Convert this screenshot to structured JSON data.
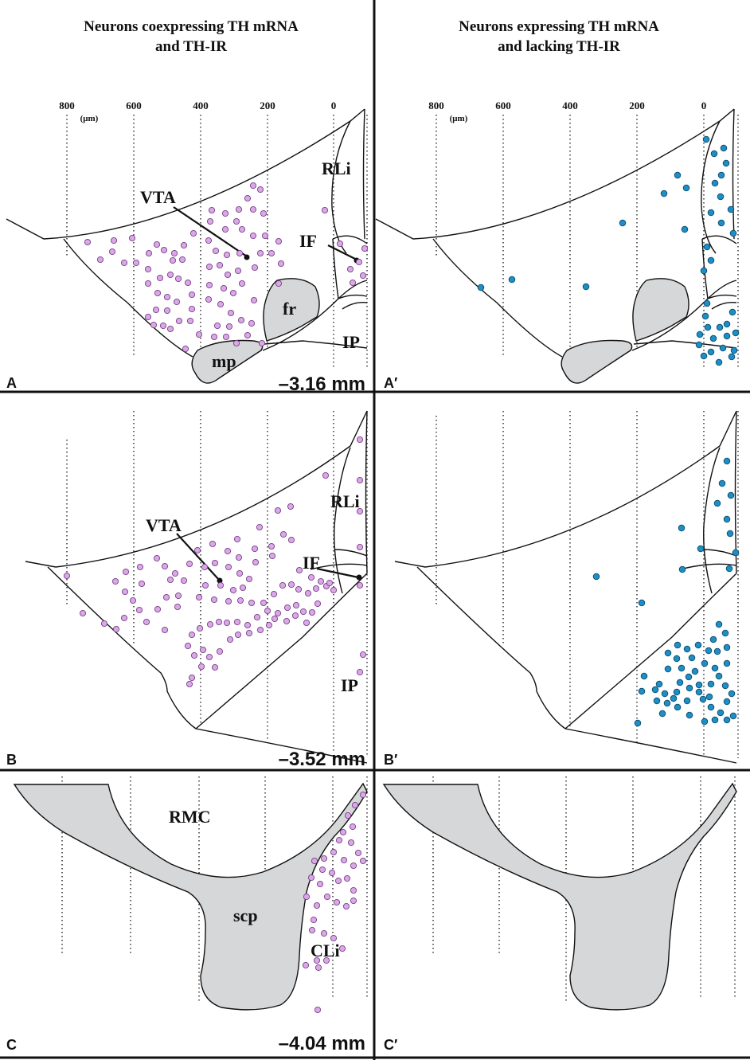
{
  "columns": {
    "left_title": [
      "Neurons coexpressing TH mRNA",
      "and TH-IR"
    ],
    "right_title": [
      "Neurons expressing TH mRNA",
      "and lacking TH-IR"
    ]
  },
  "axis": {
    "ticks": [
      "800",
      "600",
      "400",
      "200",
      "0"
    ],
    "unit": "(μm)"
  },
  "panels": {
    "A": {
      "label": "A",
      "level": "–3.16 mm",
      "regions": [
        "VTA",
        "RLi",
        "IF",
        "fr",
        "mp",
        "IP"
      ]
    },
    "A2": {
      "label": "A′"
    },
    "B": {
      "label": "B",
      "level": "–3.52 mm",
      "regions": [
        "VTA",
        "RLi",
        "IF",
        "IP"
      ]
    },
    "B2": {
      "label": "B′"
    },
    "C": {
      "label": "C",
      "level": "–4.04 mm",
      "regions": [
        "RMC",
        "scp",
        "CLi"
      ]
    },
    "C2": {
      "label": "C′"
    }
  },
  "colors": {
    "coexpressing_neuron": "#d9a9e6",
    "coexpressing_stroke": "#7a3d8a",
    "lacking_neuron": "#1d8fc4",
    "lacking_stroke": "#0b4a6e",
    "fiber_tract": "#d5d7d8"
  },
  "markers": {
    "A": [
      [
        318,
        233
      ],
      [
        311,
        249
      ],
      [
        327,
        238
      ],
      [
        331,
        268
      ],
      [
        318,
        263
      ],
      [
        300,
        263
      ],
      [
        283,
        268
      ],
      [
        266,
        264
      ],
      [
        264,
        278
      ],
      [
        283,
        288
      ],
      [
        297,
        278
      ],
      [
        304,
        288
      ],
      [
        318,
        296
      ],
      [
        333,
        296
      ],
      [
        341,
        318
      ],
      [
        327,
        318
      ],
      [
        320,
        336
      ],
      [
        301,
        318
      ],
      [
        285,
        320
      ],
      [
        271,
        315
      ],
      [
        263,
        335
      ],
      [
        276,
        333
      ],
      [
        286,
        345
      ],
      [
        299,
        340
      ],
      [
        304,
        356
      ],
      [
        293,
        368
      ],
      [
        281,
        362
      ],
      [
        263,
        358
      ],
      [
        262,
        376
      ],
      [
        277,
        382
      ],
      [
        290,
        393
      ],
      [
        303,
        402
      ],
      [
        288,
        410
      ],
      [
        273,
        409
      ],
      [
        269,
        423
      ],
      [
        284,
        423
      ],
      [
        297,
        431
      ],
      [
        311,
        421
      ],
      [
        316,
        406
      ],
      [
        319,
        377
      ],
      [
        329,
        431
      ],
      [
        250,
        420
      ],
      [
        239,
        403
      ],
      [
        225,
        403
      ],
      [
        214,
        413
      ],
      [
        205,
        409
      ],
      [
        193,
        408
      ],
      [
        186,
        398
      ],
      [
        196,
        389
      ],
      [
        210,
        390
      ],
      [
        222,
        379
      ],
      [
        210,
        373
      ],
      [
        198,
        368
      ],
      [
        186,
        356
      ],
      [
        201,
        349
      ],
      [
        214,
        345
      ],
      [
        224,
        350
      ],
      [
        236,
        355
      ],
      [
        241,
        370
      ],
      [
        241,
        388
      ],
      [
        233,
        438
      ],
      [
        243,
        293
      ],
      [
        231,
        308
      ],
      [
        219,
        318
      ],
      [
        206,
        314
      ],
      [
        197,
        307
      ],
      [
        187,
        318
      ],
      [
        186,
        338
      ],
      [
        171,
        330
      ],
      [
        156,
        330
      ],
      [
        141,
        316
      ],
      [
        126,
        326
      ],
      [
        110,
        304
      ],
      [
        143,
        302
      ],
      [
        166,
        299
      ],
      [
        229,
        326
      ],
      [
        217,
        327
      ],
      [
        262,
        302
      ],
      [
        350,
        303
      ],
      [
        353,
        331
      ],
      [
        350,
        356
      ],
      [
        408,
        264
      ],
      [
        427,
        306
      ],
      [
        440,
        338
      ],
      [
        451,
        329
      ],
      [
        456,
        346
      ],
      [
        458,
        312
      ],
      [
        443,
        355
      ]
    ],
    "A2": [
      [
        851,
        220
      ],
      [
        862,
        236
      ],
      [
        834,
        243
      ],
      [
        860,
        288
      ],
      [
        782,
        280
      ],
      [
        736,
        360
      ],
      [
        643,
        351
      ],
      [
        604,
        361
      ],
      [
        887,
        175
      ],
      [
        897,
        193
      ],
      [
        909,
        186
      ],
      [
        912,
        205
      ],
      [
        906,
        220
      ],
      [
        898,
        230
      ],
      [
        905,
        247
      ],
      [
        893,
        267
      ],
      [
        918,
        263
      ],
      [
        906,
        280
      ],
      [
        921,
        293
      ],
      [
        888,
        310
      ],
      [
        893,
        327
      ],
      [
        884,
        340
      ],
      [
        886,
        397
      ],
      [
        879,
        420
      ],
      [
        889,
        411
      ],
      [
        896,
        425
      ],
      [
        904,
        411
      ],
      [
        913,
        422
      ],
      [
        913,
        407
      ],
      [
        920,
        392
      ],
      [
        924,
        418
      ],
      [
        908,
        437
      ],
      [
        893,
        442
      ],
      [
        903,
        455
      ],
      [
        919,
        448
      ],
      [
        884,
        447
      ],
      [
        878,
        433
      ],
      [
        922,
        440
      ],
      [
        888,
        381
      ]
    ],
    "B": [
      [
        452,
        552
      ],
      [
        409,
        597
      ],
      [
        452,
        603
      ],
      [
        452,
        642
      ],
      [
        452,
        687
      ],
      [
        452,
        735
      ],
      [
        456,
        822
      ],
      [
        452,
        844
      ],
      [
        349,
        641
      ],
      [
        365,
        636
      ],
      [
        326,
        662
      ],
      [
        298,
        677
      ],
      [
        320,
        689
      ],
      [
        341,
        686
      ],
      [
        356,
        671
      ],
      [
        366,
        678
      ],
      [
        342,
        698
      ],
      [
        321,
        706
      ],
      [
        300,
        700
      ],
      [
        286,
        692
      ],
      [
        267,
        683
      ],
      [
        248,
        691
      ],
      [
        238,
        708
      ],
      [
        257,
        712
      ],
      [
        270,
        707
      ],
      [
        287,
        712
      ],
      [
        301,
        720
      ],
      [
        313,
        727
      ],
      [
        305,
        738
      ],
      [
        293,
        741
      ],
      [
        277,
        735
      ],
      [
        258,
        735
      ],
      [
        250,
        750
      ],
      [
        269,
        753
      ],
      [
        287,
        755
      ],
      [
        302,
        754
      ],
      [
        316,
        757
      ],
      [
        331,
        757
      ],
      [
        344,
        746
      ],
      [
        355,
        735
      ],
      [
        366,
        734
      ],
      [
        375,
        740
      ],
      [
        387,
        745
      ],
      [
        397,
        739
      ],
      [
        403,
        730
      ],
      [
        410,
        736
      ],
      [
        419,
        741
      ],
      [
        414,
        732
      ],
      [
        399,
        758
      ],
      [
        392,
        769
      ],
      [
        381,
        768
      ],
      [
        372,
        760
      ],
      [
        361,
        763
      ],
      [
        349,
        770
      ],
      [
        336,
        767
      ],
      [
        323,
        775
      ],
      [
        311,
        785
      ],
      [
        298,
        781
      ],
      [
        285,
        782
      ],
      [
        275,
        781
      ],
      [
        264,
        784
      ],
      [
        251,
        789
      ],
      [
        241,
        797
      ],
      [
        236,
        811
      ],
      [
        244,
        823
      ],
      [
        255,
        816
      ],
      [
        263,
        825
      ],
      [
        270,
        838
      ],
      [
        253,
        837
      ],
      [
        238,
        859
      ],
      [
        241,
        851
      ],
      [
        276,
        818
      ],
      [
        289,
        803
      ],
      [
        299,
        797
      ],
      [
        313,
        795
      ],
      [
        327,
        791
      ],
      [
        338,
        785
      ],
      [
        345,
        777
      ],
      [
        360,
        780
      ],
      [
        371,
        773
      ],
      [
        385,
        782
      ],
      [
        197,
        701
      ],
      [
        176,
        712
      ],
      [
        158,
        718
      ],
      [
        145,
        730
      ],
      [
        157,
        743
      ],
      [
        167,
        754
      ],
      [
        175,
        766
      ],
      [
        184,
        781
      ],
      [
        198,
        765
      ],
      [
        209,
        750
      ],
      [
        214,
        728
      ],
      [
        231,
        729
      ],
      [
        224,
        748
      ],
      [
        223,
        762
      ],
      [
        207,
        791
      ],
      [
        178,
        733
      ],
      [
        156,
        776
      ],
      [
        146,
        790
      ],
      [
        131,
        783
      ],
      [
        104,
        770
      ],
      [
        84,
        723
      ],
      [
        207,
        711
      ],
      [
        220,
        720
      ],
      [
        376,
        716
      ],
      [
        391,
        725
      ]
    ],
    "B2": [
      [
        913,
        579
      ],
      [
        907,
        607
      ],
      [
        918,
        622
      ],
      [
        901,
        632
      ],
      [
        913,
        652
      ],
      [
        917,
        670
      ],
      [
        924,
        694
      ],
      [
        916,
        714
      ],
      [
        880,
        689
      ],
      [
        856,
        663
      ],
      [
        857,
        715
      ],
      [
        749,
        724
      ],
      [
        806,
        757
      ],
      [
        903,
        784
      ],
      [
        911,
        795
      ],
      [
        896,
        803
      ],
      [
        913,
        813
      ],
      [
        901,
        818
      ],
      [
        890,
        817
      ],
      [
        885,
        833
      ],
      [
        898,
        839
      ],
      [
        913,
        833
      ],
      [
        877,
        810
      ],
      [
        869,
        826
      ],
      [
        873,
        843
      ],
      [
        865,
        850
      ],
      [
        856,
        839
      ],
      [
        850,
        827
      ],
      [
        863,
        815
      ],
      [
        851,
        810
      ],
      [
        839,
        820
      ],
      [
        839,
        840
      ],
      [
        854,
        857
      ],
      [
        866,
        864
      ],
      [
        878,
        860
      ],
      [
        893,
        859
      ],
      [
        903,
        849
      ],
      [
        911,
        861
      ],
      [
        919,
        871
      ],
      [
        913,
        881
      ],
      [
        905,
        895
      ],
      [
        893,
        888
      ],
      [
        883,
        878
      ],
      [
        878,
        869
      ],
      [
        891,
        875
      ],
      [
        863,
        880
      ],
      [
        851,
        888
      ],
      [
        838,
        883
      ],
      [
        835,
        871
      ],
      [
        850,
        869
      ],
      [
        846,
        877
      ],
      [
        825,
        880
      ],
      [
        823,
        866
      ],
      [
        806,
        868
      ],
      [
        809,
        849
      ],
      [
        828,
        859
      ],
      [
        866,
        898
      ],
      [
        832,
        896
      ],
      [
        801,
        908
      ],
      [
        885,
        906
      ],
      [
        898,
        904
      ],
      [
        913,
        904
      ],
      [
        921,
        899
      ]
    ],
    "C": [
      [
        456,
        998
      ],
      [
        446,
        1011
      ],
      [
        437,
        1024
      ],
      [
        443,
        1038
      ],
      [
        431,
        1045
      ],
      [
        426,
        1055
      ],
      [
        441,
        1058
      ],
      [
        450,
        1071
      ],
      [
        456,
        1081
      ],
      [
        444,
        1087
      ],
      [
        432,
        1080
      ],
      [
        419,
        1070
      ],
      [
        407,
        1078
      ],
      [
        395,
        1081
      ],
      [
        405,
        1092
      ],
      [
        417,
        1096
      ],
      [
        425,
        1106
      ],
      [
        436,
        1103
      ],
      [
        444,
        1118
      ],
      [
        444,
        1131
      ],
      [
        435,
        1138
      ],
      [
        423,
        1133
      ],
      [
        411,
        1126
      ],
      [
        402,
        1110
      ],
      [
        391,
        1102
      ],
      [
        385,
        1126
      ],
      [
        398,
        1137
      ],
      [
        394,
        1155
      ],
      [
        392,
        1168
      ],
      [
        407,
        1172
      ],
      [
        419,
        1178
      ],
      [
        430,
        1191
      ],
      [
        410,
        1206
      ],
      [
        398,
        1206
      ],
      [
        384,
        1212
      ],
      [
        400,
        1215
      ],
      [
        399,
        1268
      ]
    ]
  }
}
